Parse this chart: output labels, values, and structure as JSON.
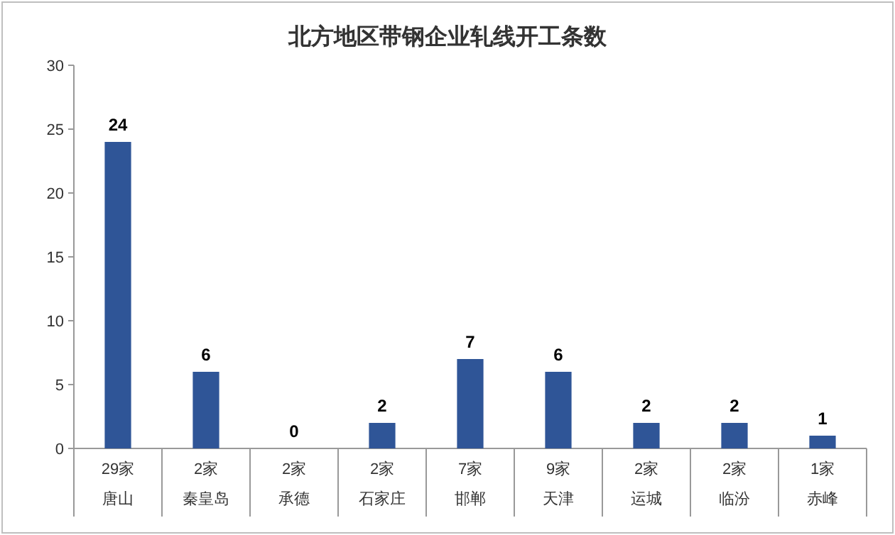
{
  "chart_data": {
    "type": "bar",
    "title": "北方地区带钢企业轧线开工条数",
    "categories": [
      "29家唐山",
      "2家秦皇岛",
      "2家承德",
      "2家石家庄",
      "7家邯郸",
      "9家天津",
      "2家运城",
      "2家临汾",
      "1家赤峰"
    ],
    "series": [
      {
        "color": "#2f5597",
        "values": [
          24,
          6,
          0,
          2,
          7,
          6,
          2,
          2,
          1
        ]
      }
    ],
    "ylim": [
      0,
      30
    ],
    "yticks": [
      0,
      5,
      10,
      15,
      20,
      25,
      30
    ],
    "data_labels": true,
    "grid": false
  }
}
